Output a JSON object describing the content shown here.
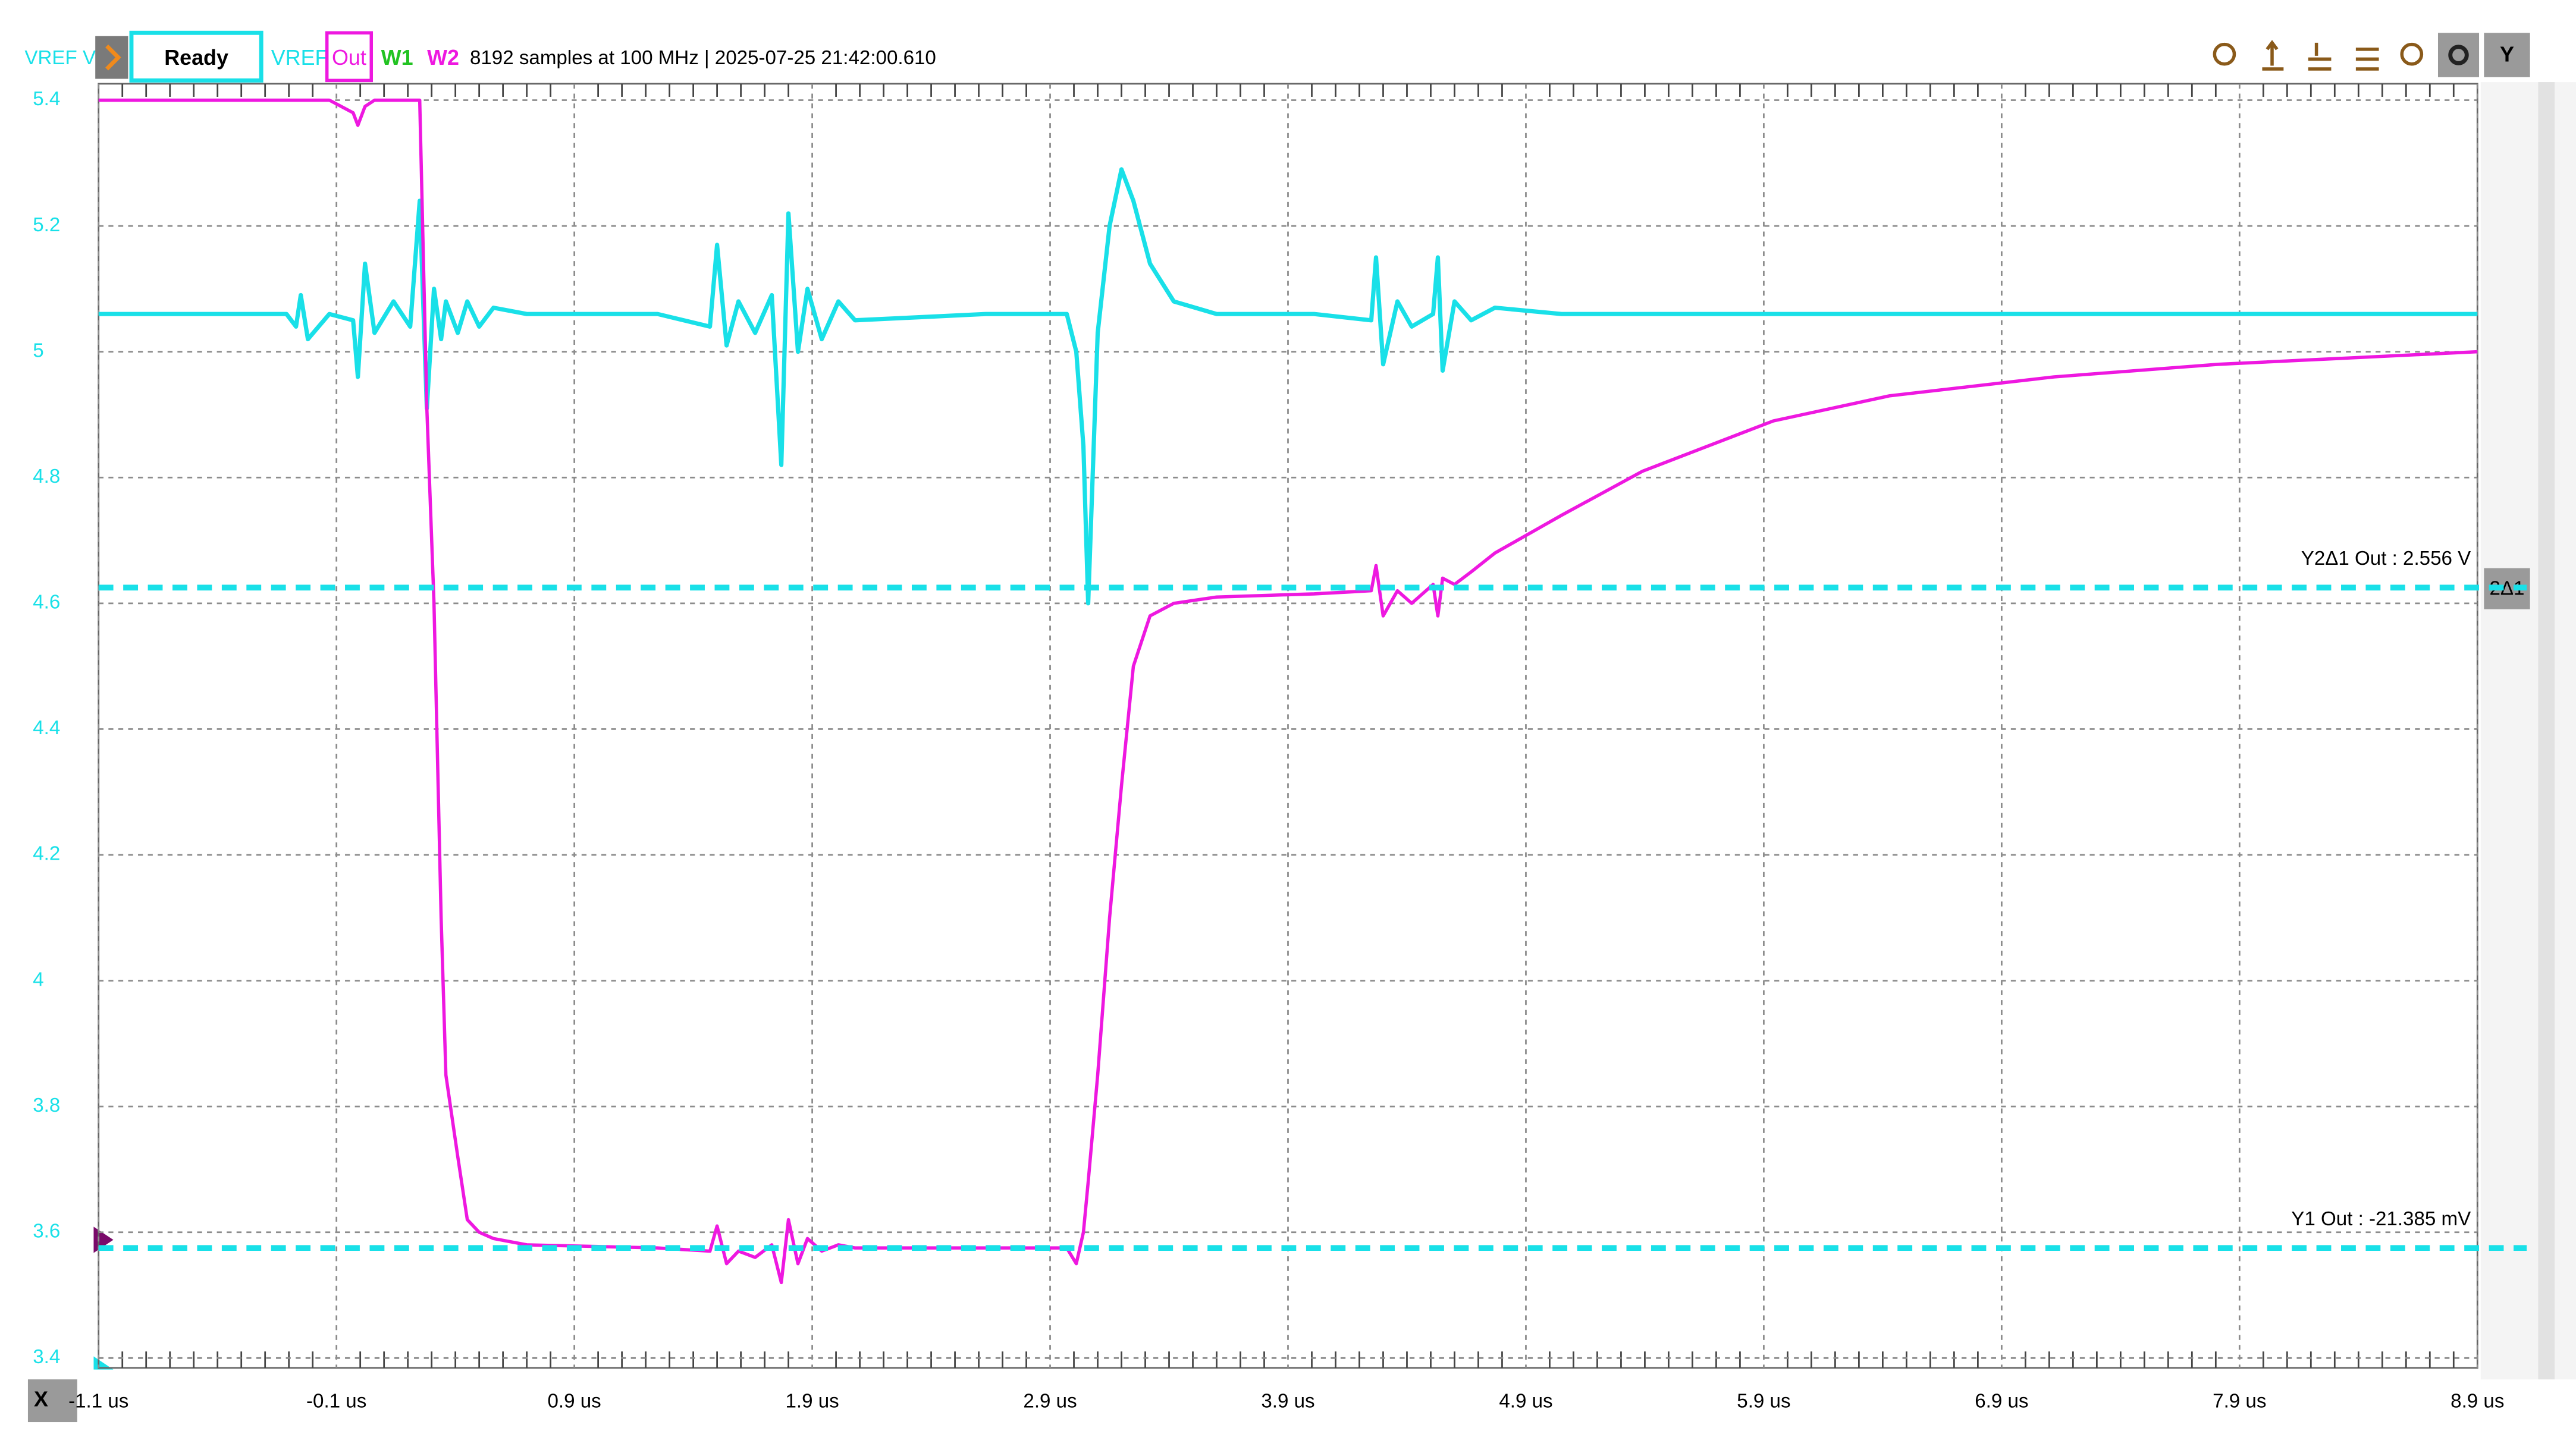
{
  "toolbar": {
    "status": "Ready",
    "info": "8192 samples at 100 MHz | 2025-07-25 21:42:00.610",
    "channels": [
      "W1",
      "W2"
    ],
    "y_button": "Y",
    "x_button": "X",
    "cursor_tag": "2Δ1"
  },
  "chart_data": {
    "type": "line",
    "ylabel": "VREF V",
    "x": [
      -1.1,
      -0.48,
      -0.31,
      -0.27,
      -0.25,
      -0.22,
      -0.13,
      -0.03,
      -0.01,
      0.02,
      0.06,
      0.14,
      0.21,
      0.25,
      0.28,
      0.31,
      0.34,
      0.36,
      0.41,
      0.45,
      0.5,
      0.56,
      0.7,
      1.25,
      1.47,
      1.5,
      1.54,
      1.59,
      1.66,
      1.73,
      1.77,
      1.8,
      1.84,
      1.88,
      1.94,
      2.01,
      2.08,
      2.63,
      2.97,
      3.01,
      3.04,
      3.06,
      3.1,
      3.15,
      3.2,
      3.25,
      3.32,
      3.42,
      3.6,
      4.01,
      4.25,
      4.27,
      4.3,
      4.36,
      4.42,
      4.51,
      4.53,
      4.55,
      4.6,
      4.67,
      4.77,
      5.05,
      5.39,
      5.94,
      6.43,
      7.12,
      7.81,
      8.9
    ],
    "xlim": [
      -1.1,
      8.9
    ],
    "xticks": [
      {
        "value": -1.1,
        "label": "-1.1 us"
      },
      {
        "value": -0.1,
        "label": "-0.1 us"
      },
      {
        "value": 0.9,
        "label": "0.9 us"
      },
      {
        "value": 1.9,
        "label": "1.9 us"
      },
      {
        "value": 2.9,
        "label": "2.9 us"
      },
      {
        "value": 3.9,
        "label": "3.9 us"
      },
      {
        "value": 4.9,
        "label": "4.9 us"
      },
      {
        "value": 5.9,
        "label": "5.9 us"
      },
      {
        "value": 6.9,
        "label": "6.9 us"
      },
      {
        "value": 7.9,
        "label": "7.9 us"
      },
      {
        "value": 8.9,
        "label": "8.9 us"
      }
    ],
    "ylim": [
      3.4,
      5.4
    ],
    "yticks": [
      3.4,
      3.6,
      3.8,
      4,
      4.2,
      4.4,
      4.6,
      4.8,
      5,
      5.2,
      5.4
    ],
    "grid": true,
    "series": [
      {
        "name": "VREF",
        "color": "#19e0e8",
        "values": [
          5.06,
          5.06,
          5.06,
          5.04,
          5.09,
          5.02,
          5.06,
          5.05,
          4.96,
          5.14,
          5.03,
          5.08,
          5.04,
          5.24,
          4.91,
          5.1,
          5.02,
          5.08,
          5.03,
          5.08,
          5.04,
          5.07,
          5.06,
          5.06,
          5.04,
          5.17,
          5.01,
          5.08,
          5.03,
          5.09,
          4.82,
          5.22,
          5.0,
          5.1,
          5.02,
          5.08,
          5.05,
          5.06,
          5.06,
          5.0,
          4.85,
          4.6,
          5.03,
          5.2,
          5.29,
          5.24,
          5.14,
          5.08,
          5.06,
          5.06,
          5.05,
          5.15,
          4.98,
          5.08,
          5.04,
          5.06,
          5.15,
          4.97,
          5.08,
          5.05,
          5.07,
          5.06,
          5.06,
          5.06,
          5.06,
          5.06,
          5.06,
          5.06
        ]
      },
      {
        "name": "Out",
        "color": "#ee18e0",
        "values": [
          5.4,
          5.4,
          5.4,
          5.4,
          5.4,
          5.4,
          5.4,
          5.38,
          5.36,
          5.39,
          5.4,
          5.4,
          5.4,
          5.4,
          4.91,
          4.6,
          4.1,
          3.85,
          3.72,
          3.62,
          3.6,
          3.59,
          3.58,
          3.575,
          3.57,
          3.61,
          3.55,
          3.57,
          3.56,
          3.58,
          3.52,
          3.62,
          3.55,
          3.59,
          3.57,
          3.58,
          3.575,
          3.575,
          3.575,
          3.55,
          3.6,
          3.68,
          3.85,
          4.1,
          4.31,
          4.5,
          4.58,
          4.6,
          4.61,
          4.615,
          4.62,
          4.66,
          4.58,
          4.62,
          4.6,
          4.63,
          4.58,
          4.64,
          4.63,
          4.65,
          4.68,
          4.74,
          4.81,
          4.89,
          4.93,
          4.96,
          4.98,
          5.0
        ]
      }
    ],
    "cursors": [
      {
        "label": "Y2Δ1 Out : 2.556 V",
        "value": 4.625,
        "color": "#19e0e8"
      },
      {
        "label": "Y1 Out : -21.385 mV",
        "value": 3.575,
        "color": "#19e0e8"
      }
    ]
  }
}
